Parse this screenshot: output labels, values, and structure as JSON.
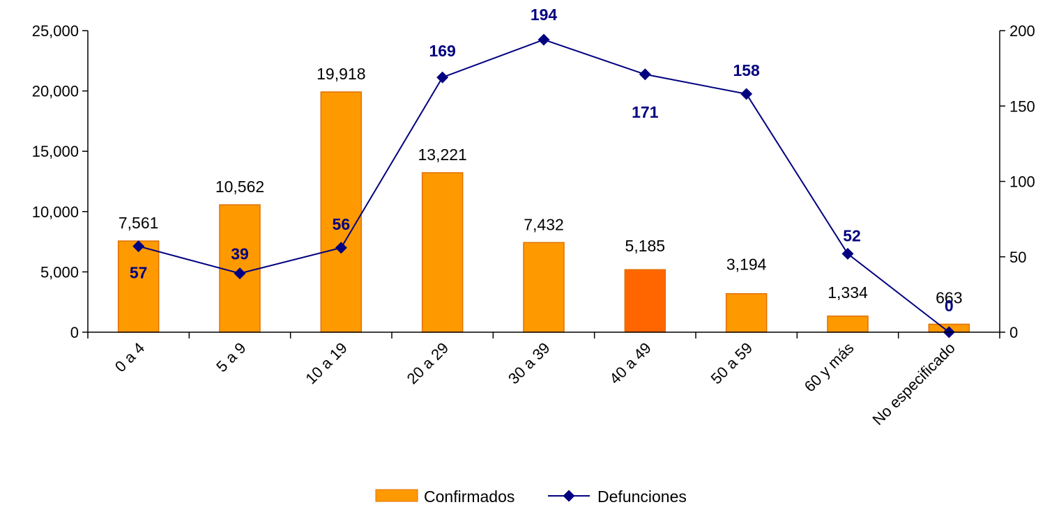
{
  "chart_data": {
    "type": "bar",
    "categories": [
      "0 a 4",
      "5 a 9",
      "10 a 19",
      "20 a 29",
      "30 a 39",
      "40 a 49",
      "50 a 59",
      "60 y más",
      "No especificado"
    ],
    "series": [
      {
        "name": "Confirmados",
        "type": "bar",
        "axis": "left",
        "values": [
          7561,
          10562,
          19918,
          13221,
          7432,
          5185,
          3194,
          1334,
          663
        ],
        "labels": [
          "7,561",
          "10,562",
          "19,918",
          "13,221",
          "7,432",
          "5,185",
          "3,194",
          "1,334",
          "663"
        ],
        "color": "#FF9900",
        "highlight_color": "#FF6600",
        "highlight_index": 5
      },
      {
        "name": "Defunciones",
        "type": "line",
        "axis": "right",
        "values": [
          57,
          39,
          56,
          169,
          194,
          171,
          158,
          52,
          0
        ],
        "labels": [
          "57",
          "39",
          "56",
          "169",
          "194",
          "171",
          "158",
          "52",
          "0"
        ],
        "color": "#000080"
      }
    ],
    "left_axis": {
      "min": 0,
      "max": 25000,
      "ticks": [
        "0",
        "5,000",
        "10,000",
        "15,000",
        "20,000",
        "25,000"
      ]
    },
    "right_axis": {
      "min": 0,
      "max": 200,
      "ticks": [
        "0",
        "50",
        "100",
        "150",
        "200"
      ]
    },
    "title": "",
    "xlabel": "",
    "ylabel": "",
    "legend_position": "bottom",
    "grid": false
  },
  "legend": {
    "items": [
      "Confirmados",
      "Defunciones"
    ]
  }
}
